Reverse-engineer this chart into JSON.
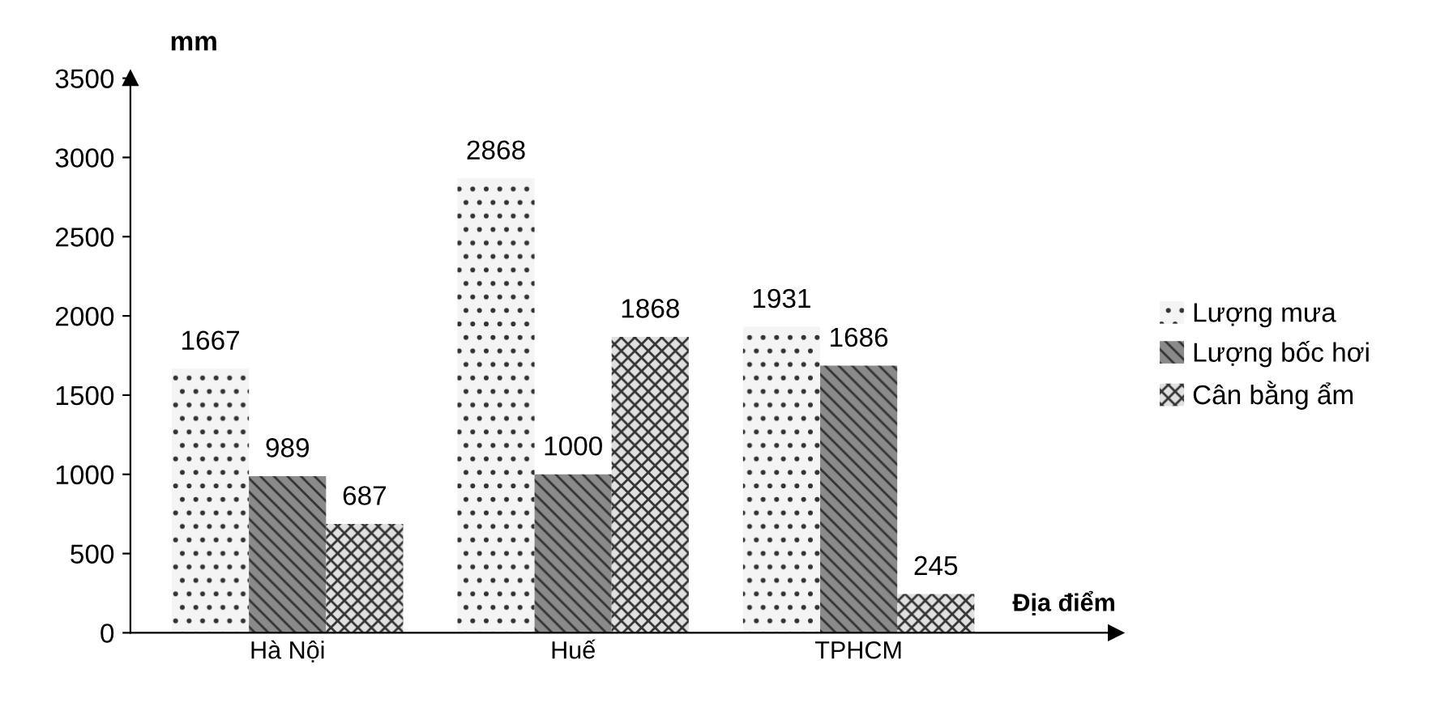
{
  "chart_data": {
    "type": "bar",
    "ylabel": "mm",
    "xlabel": "Địa điểm",
    "categories": [
      "Hà Nội",
      "Huế",
      "TPHCM"
    ],
    "series": [
      {
        "name": "Lượng mưa",
        "color": "#f4f4f4",
        "values": [
          1667,
          2868,
          1931
        ]
      },
      {
        "name": "Lượng bốc hơi",
        "color": "#8a8a8a",
        "values": [
          989,
          1000,
          1686
        ]
      },
      {
        "name": "Cân bằng ẩm",
        "color": "#e0e0e0",
        "values": [
          687,
          1868,
          245
        ]
      }
    ],
    "ylim": [
      0,
      3500
    ],
    "yticks": [
      0,
      500,
      1000,
      1500,
      2000,
      2500,
      3000,
      3500
    ],
    "data_labels": true,
    "grid": false,
    "legend": "right"
  }
}
